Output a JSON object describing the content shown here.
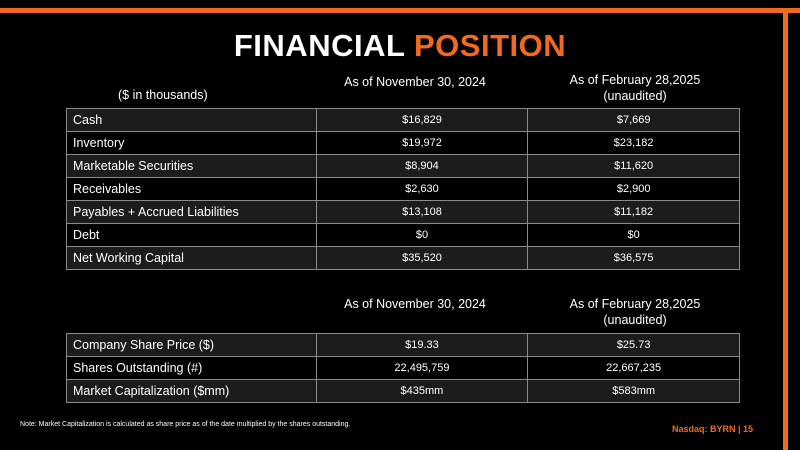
{
  "title": {
    "part1": "FINANCIAL",
    "part2": "POSITION"
  },
  "colors": {
    "accent": "#f26a21",
    "background": "#000000",
    "text": "#ffffff"
  },
  "balance": {
    "unit_label": "($ in thousands)",
    "col1": "As of November 30, 2024",
    "col2_line1": "As of February 28,2025",
    "col2_line2": "(unaudited)",
    "rows": [
      {
        "label": "Cash",
        "v1": "$16,829",
        "v2": "$7,669"
      },
      {
        "label": "Inventory",
        "v1": "$19,972",
        "v2": "$23,182"
      },
      {
        "label": "Marketable Securities",
        "v1": "$8,904",
        "v2": "$11,620"
      },
      {
        "label": "Receivables",
        "v1": "$2,630",
        "v2": "$2,900"
      },
      {
        "label": "Payables + Accrued Liabilities",
        "v1": "$13,108",
        "v2": "$11,182"
      },
      {
        "label": "Debt",
        "v1": "$0",
        "v2": "$0"
      },
      {
        "label": "Net Working Capital",
        "v1": "$35,520",
        "v2": "$36,575"
      }
    ]
  },
  "market": {
    "col1": "As of November 30, 2024",
    "col2_line1": "As of February 28,2025",
    "col2_line2": "(unaudited)",
    "rows": [
      {
        "label": "Company Share Price ($)",
        "v1": "$19.33",
        "v2": "$25.73"
      },
      {
        "label": "Shares Outstanding (#)",
        "v1": "22,495,759",
        "v2": "22,667,235"
      },
      {
        "label": "Market Capitalization ($mm)",
        "v1": "$435mm",
        "v2": "$583mm"
      }
    ]
  },
  "note": "Note: Market Capitalization is calculated as share price as of the date multiplied by the shares outstanding.",
  "footer": "Nasdaq: BYRN | 15"
}
